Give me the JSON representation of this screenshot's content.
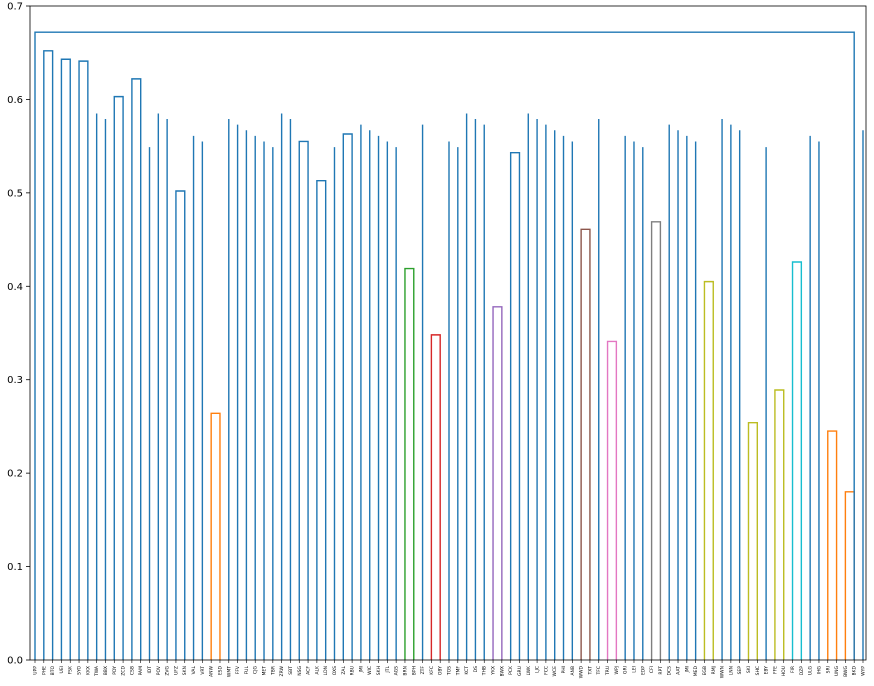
{
  "chart_data": {
    "type": "dendrogram",
    "title": "",
    "xlabel": "",
    "ylabel": "",
    "ylim": [
      0,
      0.7
    ],
    "y_ticks": [
      "0.0",
      "0.1",
      "0.2",
      "0.3",
      "0.4",
      "0.5",
      "0.6",
      "0.7"
    ],
    "default_link_color": "#1f77b4",
    "leaves": [
      "UPP",
      "PHE",
      "BTO",
      "UEI",
      "FSK",
      "SYO",
      "KKX",
      "TWA",
      "BBX",
      "PDY",
      "ZCD",
      "CSB",
      "PAM",
      "IDT",
      "POV",
      "ZVG",
      "UFZ",
      "SKN",
      "VAL",
      "VRT",
      "ANW",
      "ESD",
      "WMT",
      "FFV",
      "FUL",
      "CJG",
      "MET",
      "TBR",
      "ZRW",
      "SBT",
      "NSG",
      "ACF",
      "ALK",
      "LDN",
      "OXS",
      "ZAL",
      "RBU",
      "JMI",
      "WIC",
      "SKH",
      "JTL",
      "AGS",
      "BRN",
      "BPH",
      "ZTF",
      "KFC",
      "OBY",
      "TOS",
      "TMF",
      "KCT",
      "DS",
      "THB",
      "YKX",
      "BWX",
      "PCK",
      "GRU",
      "LWK",
      "LJC",
      "FCC",
      "WCE",
      "PHI",
      "ANB",
      "WWD",
      "TXT",
      "TFC",
      "TRU",
      "WPJ",
      "GRI",
      "LEI",
      "EDP",
      "CFI",
      "RPT",
      "DCS",
      "AAT",
      "JMI",
      "MED",
      "EGB",
      "RMJ",
      "WWN",
      "LNN",
      "SEP",
      "SKI",
      "SHC",
      "EBY",
      "FFE",
      "HOU",
      "FIR",
      "DZP",
      "ULG",
      "IHG",
      "SRI",
      "UNG",
      "BWG",
      "BKD",
      "WYP"
    ],
    "links_y": [
      [
        "PHE",
        "BTO",
        0.652
      ],
      [
        "UEI",
        "FSK",
        0.643
      ],
      [
        "SYO",
        "KKX",
        0.641
      ],
      [
        "PDY",
        "ZCD",
        0.603
      ],
      [
        "CSB",
        "PAM",
        0.622
      ],
      [
        "UFZ",
        "SKN",
        0.502
      ],
      [
        "ANW",
        "ESD",
        0.264
      ],
      [
        "NSG",
        "ACF",
        0.555
      ],
      [
        "ALK",
        "LDN",
        0.513
      ],
      [
        "ZAL",
        "RBU",
        0.563
      ],
      [
        "BRN",
        "BPH",
        0.419
      ],
      [
        "KFC",
        "OBY",
        0.348
      ],
      [
        "YKX",
        "BWX",
        0.378
      ],
      [
        "PCK",
        "GRU",
        0.543
      ],
      [
        "WWD",
        "TXT",
        0.461
      ],
      [
        "TRU",
        "WPJ",
        0.341
      ],
      [
        "CFI",
        "RPT",
        0.469
      ],
      [
        "EGB",
        "RMJ",
        0.405
      ],
      [
        "SKI",
        "SHC",
        0.254
      ],
      [
        "FFE",
        "HOU",
        0.289
      ],
      [
        "FIR",
        "DZP",
        0.426
      ],
      [
        "SRI",
        "UNG",
        0.245
      ],
      [
        "BWG",
        "BKD",
        0.18
      ],
      [
        "UPP",
        "BKD",
        0.672
      ]
    ],
    "cluster_colors": [
      "#ff7f0e",
      "#2ca02c",
      "#d62728",
      "#9467bd",
      "#8c564b",
      "#e377c2",
      "#7f7f7f",
      "#bcbd22",
      "#17becf"
    ]
  }
}
